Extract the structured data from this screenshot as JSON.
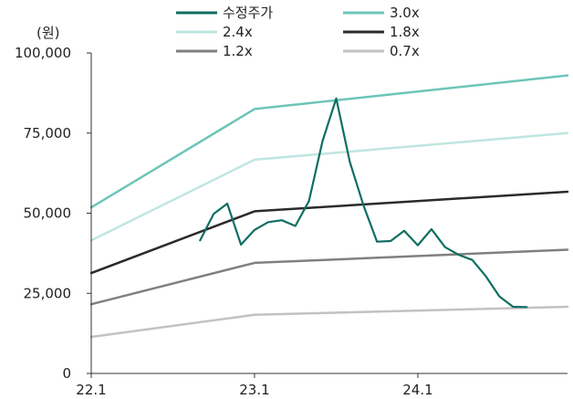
{
  "chart_data": {
    "type": "line",
    "unit_label": "(원)",
    "ylim": [
      0,
      100000
    ],
    "y_ticks": [
      {
        "value": 0,
        "label": "0"
      },
      {
        "value": 25000,
        "label": "25,000"
      },
      {
        "value": 50000,
        "label": "50,000"
      },
      {
        "value": 75000,
        "label": "75,000"
      },
      {
        "value": 100000,
        "label": "100,000"
      }
    ],
    "xlim": [
      "2022-01",
      "2024-12"
    ],
    "x_ticks": [
      {
        "value": "2022-01",
        "label": "22.1"
      },
      {
        "value": "2023-01",
        "label": "23.1"
      },
      {
        "value": "2024-01",
        "label": "24.1"
      }
    ],
    "grid": false,
    "legend_position": "top",
    "series": [
      {
        "name": "수정주가",
        "color": "#0f6e62",
        "x": [
          "2022-09",
          "2022-10",
          "2022-11",
          "2022-12",
          "2023-01",
          "2023-02",
          "2023-03",
          "2023-04",
          "2023-05",
          "2023-06",
          "2023-07",
          "2023-08",
          "2023-09",
          "2023-10",
          "2023-11",
          "2023-12",
          "2024-01",
          "2024-02",
          "2024-03",
          "2024-04",
          "2024-05",
          "2024-06",
          "2024-07",
          "2024-08",
          "2024-09"
        ],
        "values": [
          41500,
          49800,
          53000,
          40200,
          44800,
          47200,
          47800,
          46000,
          53800,
          72500,
          85800,
          66000,
          52500,
          41100,
          41300,
          44500,
          40000,
          45000,
          39400,
          37000,
          35400,
          30300,
          24000,
          20800,
          20700
        ]
      },
      {
        "name": "3.0x",
        "color": "#6cc5b8",
        "x": [
          "2022-01",
          "2023-01",
          "2024-12"
        ],
        "values": [
          51800,
          82500,
          93000
        ]
      },
      {
        "name": "2.4x",
        "color": "#bfe6e0",
        "x": [
          "2022-01",
          "2023-01",
          "2024-12"
        ],
        "values": [
          41500,
          66700,
          75000
        ]
      },
      {
        "name": "1.8x",
        "color": "#2b2b2b",
        "x": [
          "2022-01",
          "2023-01",
          "2024-12"
        ],
        "values": [
          31300,
          50600,
          56700
        ]
      },
      {
        "name": "1.2x",
        "color": "#808080",
        "x": [
          "2022-01",
          "2023-01",
          "2024-12"
        ],
        "values": [
          21600,
          34500,
          38600
        ]
      },
      {
        "name": "0.7x",
        "color": "#c2c2c2",
        "x": [
          "2022-01",
          "2023-01",
          "2024-12"
        ],
        "values": [
          11400,
          18300,
          20800
        ]
      }
    ]
  }
}
